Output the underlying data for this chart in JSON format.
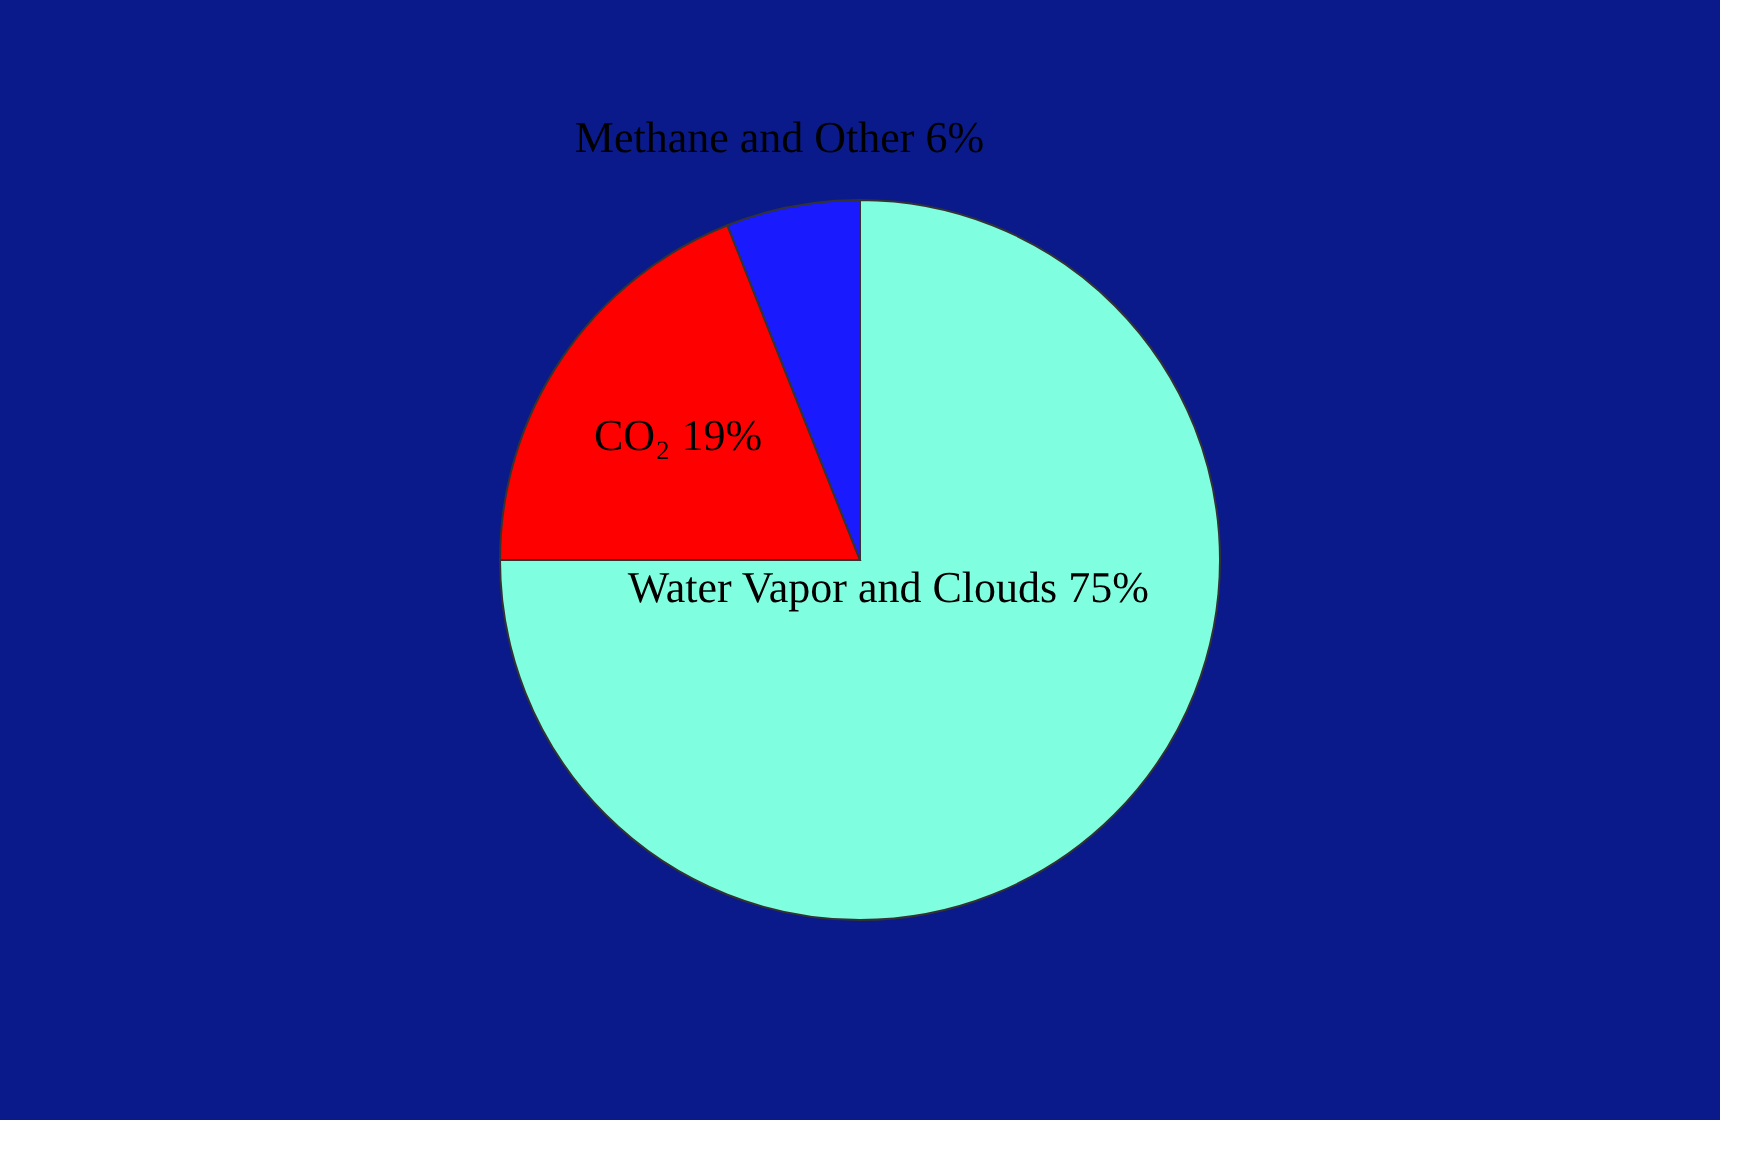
{
  "chart_data": {
    "type": "pie",
    "categories": [
      "Water Vapor and Clouds",
      "CO₂",
      "Methane and Other"
    ],
    "values": [
      75,
      19,
      6
    ],
    "colors": [
      "#80ffe0",
      "#ff0000",
      "#1a1aff"
    ],
    "value_labels": [
      "75%",
      "19%",
      "6%"
    ],
    "legend": false
  }
}
